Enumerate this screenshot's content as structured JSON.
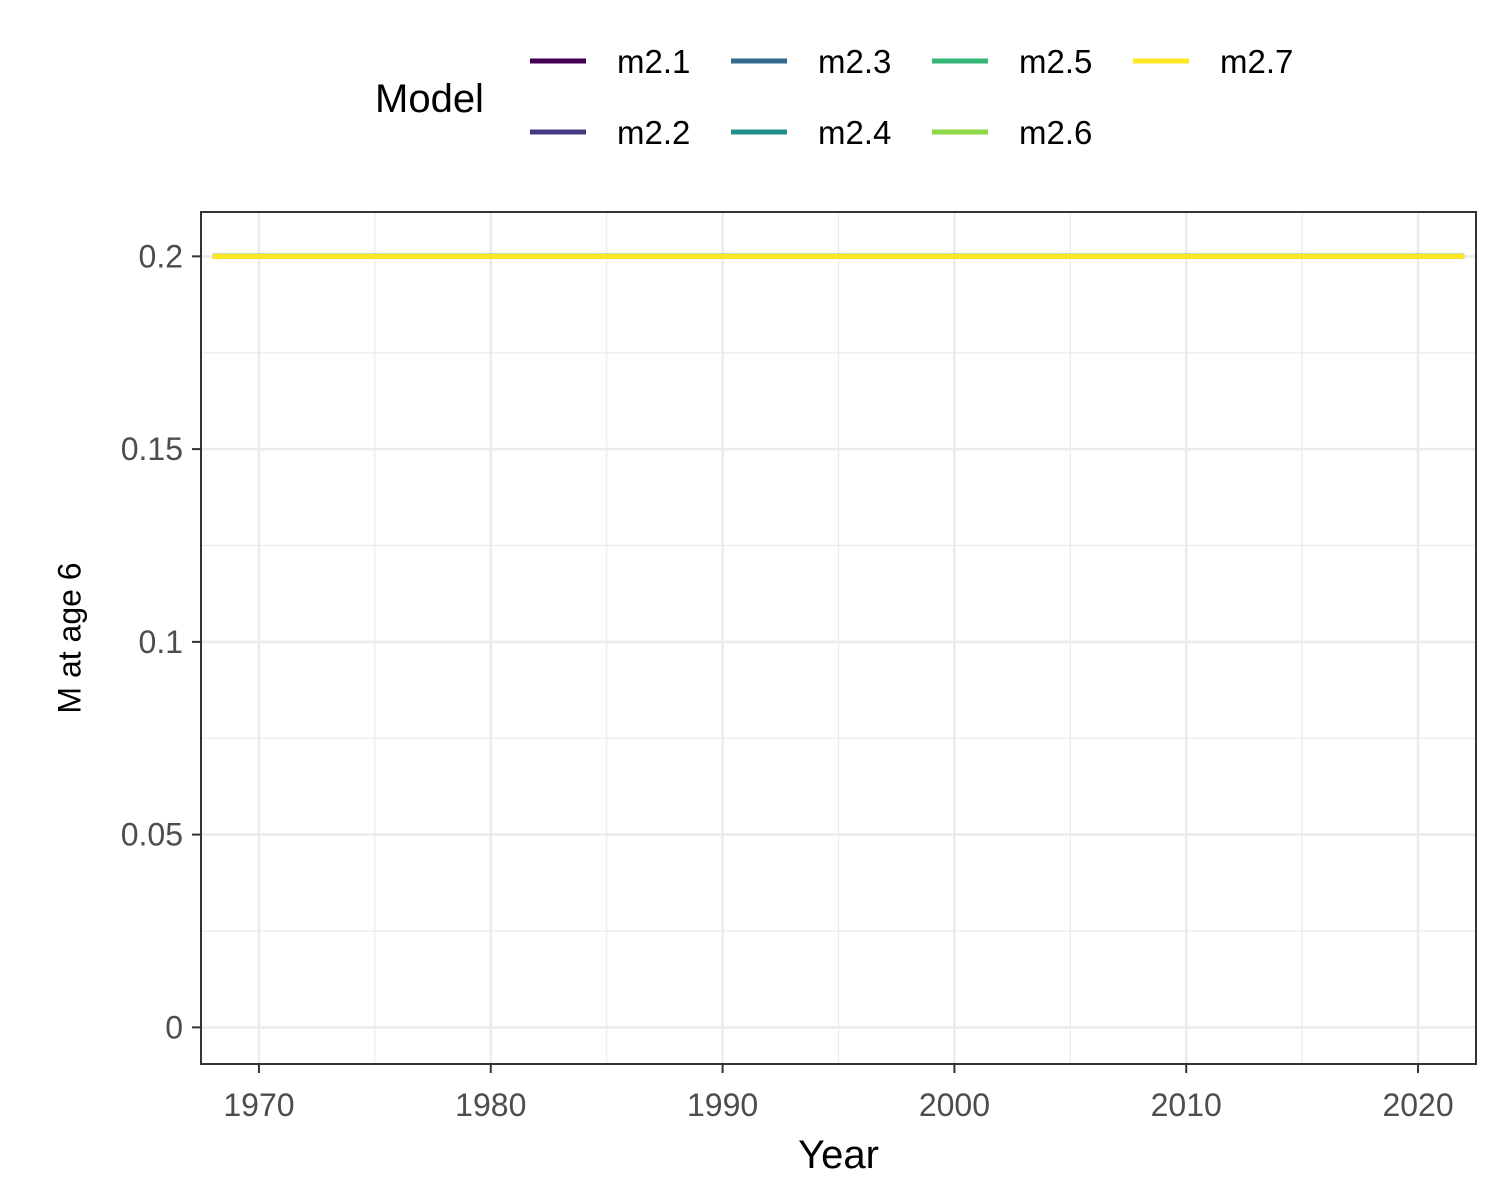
{
  "chart_data": {
    "type": "line",
    "xlabel": "Year",
    "ylabel": "M at age 6",
    "xlim": [
      1967.5,
      2022.5
    ],
    "ylim": [
      -0.0095,
      0.2115
    ],
    "x_ticks": [
      1970,
      1980,
      1990,
      2000,
      2010,
      2020
    ],
    "x_minor_ticks": [
      1975,
      1985,
      1995,
      2005,
      2015
    ],
    "y_ticks": [
      0,
      0.05,
      0.1,
      0.15,
      0.2
    ],
    "y_tick_labels": [
      "0",
      "0.05",
      "0.1",
      "0.15",
      "0.2"
    ],
    "y_minor_ticks": [
      0.025,
      0.075,
      0.125,
      0.175
    ],
    "grid": true,
    "legend": {
      "title": "Model",
      "position": "top"
    },
    "series": [
      {
        "name": "m2.1",
        "color": "#440154",
        "x": [
          1968,
          2022
        ],
        "y": [
          0.2,
          0.2
        ]
      },
      {
        "name": "m2.2",
        "color": "#443A83",
        "x": [
          1968,
          2022
        ],
        "y": [
          0.2,
          0.2
        ]
      },
      {
        "name": "m2.3",
        "color": "#31688E",
        "x": [
          1968,
          2022
        ],
        "y": [
          0.2,
          0.2
        ]
      },
      {
        "name": "m2.4",
        "color": "#21908C",
        "x": [
          1968,
          2022
        ],
        "y": [
          0.2,
          0.2
        ]
      },
      {
        "name": "m2.5",
        "color": "#35B779",
        "x": [
          1968,
          2022
        ],
        "y": [
          0.2,
          0.2
        ]
      },
      {
        "name": "m2.6",
        "color": "#8FD744",
        "x": [
          1968,
          2022
        ],
        "y": [
          0.2,
          0.2
        ]
      },
      {
        "name": "m2.7",
        "color": "#FDE725",
        "x": [
          1968,
          2022
        ],
        "y": [
          0.2,
          0.2
        ]
      }
    ]
  }
}
